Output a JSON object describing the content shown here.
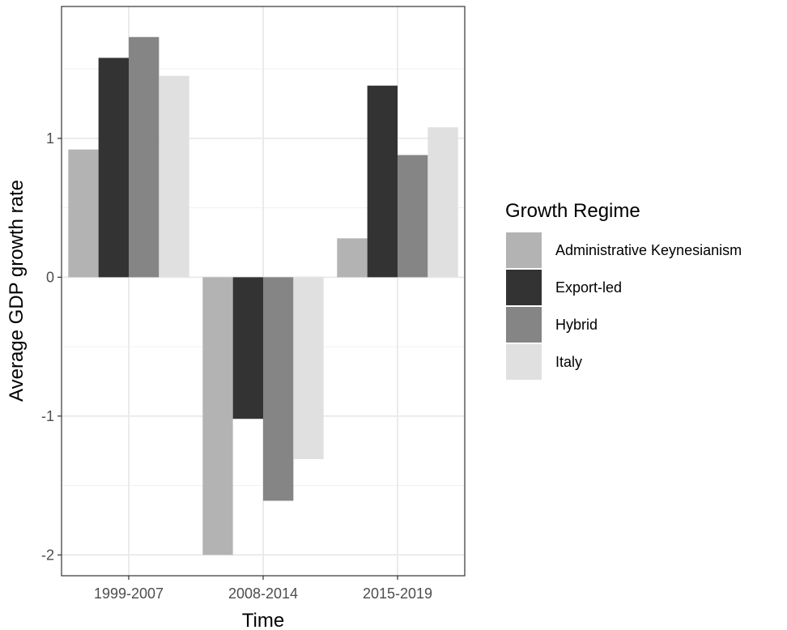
{
  "chart_data": {
    "type": "bar",
    "title": "",
    "xlabel": "Time",
    "ylabel": "Average GDP growth rate",
    "categories": [
      "1999-2007",
      "2008-2014",
      "2015-2019"
    ],
    "series": [
      {
        "name": "Administrative Keynesianism",
        "color": "#b3b3b3",
        "values": [
          0.92,
          -2.0,
          0.28
        ]
      },
      {
        "name": "Export-led",
        "color": "#333333",
        "values": [
          1.58,
          -1.02,
          1.38
        ]
      },
      {
        "name": "Hybrid",
        "color": "#858585",
        "values": [
          1.73,
          -1.61,
          0.88
        ]
      },
      {
        "name": "Italy",
        "color": "#e0e0e0",
        "values": [
          1.45,
          -1.31,
          1.08
        ]
      }
    ],
    "ylim": [
      -2.15,
      1.95
    ],
    "yticks": [
      -2,
      -1,
      0,
      1
    ],
    "ytick_labels": [
      "-2",
      "-1",
      "0",
      "1"
    ],
    "grid": true,
    "legend": {
      "title": "Growth Regime",
      "placement": "right"
    }
  }
}
